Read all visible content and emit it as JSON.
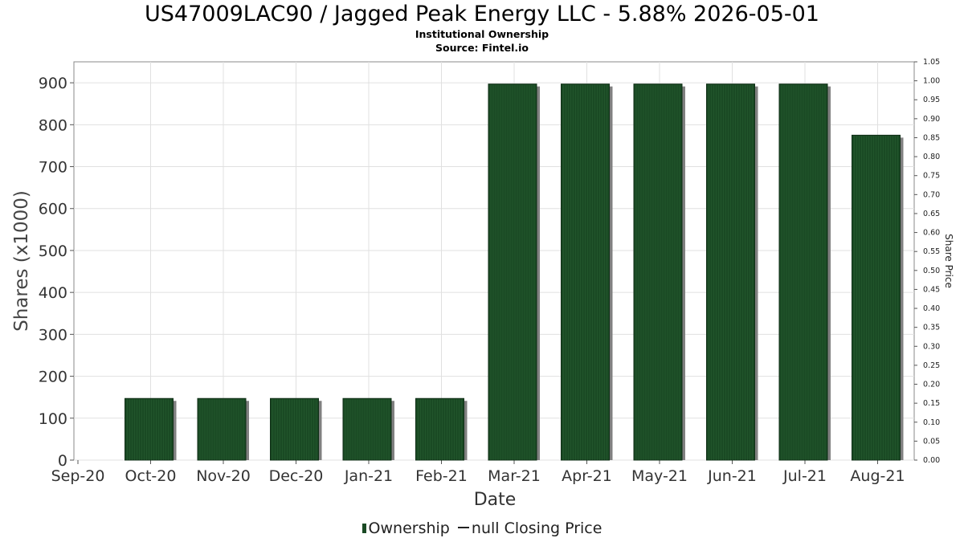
{
  "chart_data": {
    "type": "bar",
    "title": "US47009LAC90 / Jagged Peak Energy LLC - 5.88% 2026-05-01",
    "subtitle_1": "Institutional Ownership",
    "subtitle_2": "Source: Fintel.io",
    "xlabel": "Date",
    "ylabel": "Shares (x1000)",
    "y2label": "Share Price",
    "categories": [
      "Oct-20",
      "Nov-20",
      "Dec-20",
      "Jan-21",
      "Feb-21",
      "Mar-21",
      "Apr-21",
      "May-21",
      "Jun-21",
      "Jul-21",
      "Aug-21"
    ],
    "x_tick_labels": [
      "Sep-20",
      "Oct-20",
      "Nov-20",
      "Dec-20",
      "Jan-21",
      "Feb-21",
      "Mar-21",
      "Apr-21",
      "May-21",
      "Jun-21",
      "Jul-21",
      "Aug-21"
    ],
    "series": [
      {
        "name": "Ownership",
        "values": [
          147,
          147,
          147,
          147,
          147,
          897,
          897,
          897,
          897,
          897,
          775
        ]
      }
    ],
    "ylim": [
      0,
      950
    ],
    "yticks": [
      0,
      100,
      200,
      300,
      400,
      500,
      600,
      700,
      800,
      900
    ],
    "y2lim": [
      0,
      1.05
    ],
    "y2ticks": [
      "0.00",
      "0.05",
      "0.10",
      "0.15",
      "0.20",
      "0.25",
      "0.30",
      "0.35",
      "0.40",
      "0.45",
      "0.50",
      "0.55",
      "0.60",
      "0.65",
      "0.70",
      "0.75",
      "0.80",
      "0.85",
      "0.90",
      "0.95",
      "1.00",
      "1.05"
    ],
    "grid": true,
    "legend_position": "bottom",
    "legend": {
      "ownership_label": "Ownership",
      "price_label": "null Closing Price"
    },
    "colors": {
      "bar": "#1a4a24",
      "bar_shadow": "#808080",
      "grid": "#e0e0e0",
      "axis": "#888888"
    }
  }
}
